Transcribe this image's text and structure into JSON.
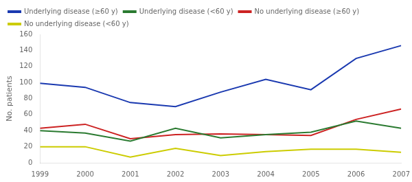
{
  "chart_data": {
    "type": "line",
    "x": [
      1999,
      2000,
      2001,
      2002,
      2003,
      2004,
      2005,
      2006,
      2007
    ],
    "series": [
      {
        "name": "Underlying disease (≥60 y)",
        "color": "#1a39b0",
        "values": [
          99,
          94,
          75,
          70,
          88,
          104,
          91,
          130,
          146
        ]
      },
      {
        "name": "Underlying disease (<60 y)",
        "color": "#2a7a30",
        "values": [
          40,
          37,
          27,
          43,
          31,
          35,
          38,
          52,
          43
        ]
      },
      {
        "name": "No underlying disease (≥60 y)",
        "color": "#cc2222",
        "values": [
          43,
          48,
          30,
          35,
          36,
          35,
          34,
          54,
          67
        ]
      },
      {
        "name": "No underlying disease (<60 y)",
        "color": "#cccc00",
        "values": [
          20,
          20,
          7,
          18,
          9,
          14,
          17,
          17,
          13
        ]
      }
    ],
    "y_label": "No. patients",
    "xlim": [
      1999,
      2007
    ],
    "xticks": [
      1999,
      2000,
      2001,
      2002,
      2003,
      2004,
      2005,
      2006,
      2007
    ],
    "ylim": [
      0,
      160
    ],
    "yticks": [
      0,
      20,
      40,
      60,
      80,
      100,
      120,
      140,
      160
    ],
    "grid": false,
    "legend": "upper left"
  }
}
